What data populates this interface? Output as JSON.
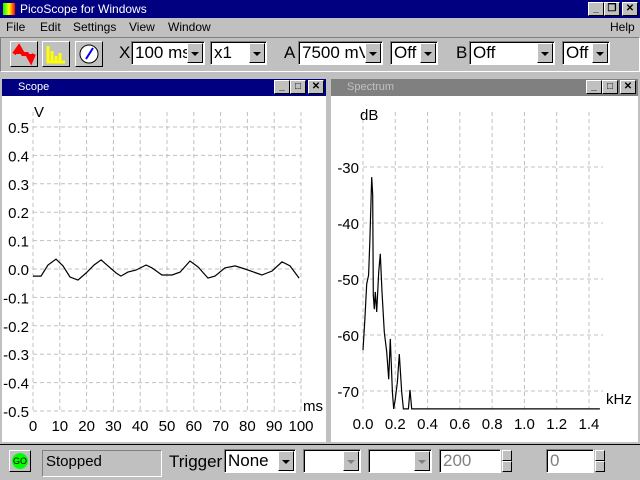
{
  "window": {
    "title": "PicoScope for Windows"
  },
  "menu": {
    "items": [
      "File",
      "Edit",
      "Settings",
      "View",
      "Window"
    ],
    "help": "Help"
  },
  "toolbar": {
    "icons": [
      "scope-view-icon",
      "spectrum-view-icon",
      "meter-view-icon"
    ],
    "x_label": "X",
    "timebase": "100 ms",
    "multiplier": "x1",
    "a_label": "A",
    "a_range": "7500 mV",
    "a_coupling": "Off",
    "b_label": "B",
    "b_range": "Off",
    "b_coupling": "Off"
  },
  "scope": {
    "title": "Scope"
  },
  "spectrum": {
    "title": "Spectrum"
  },
  "status": {
    "go_label": "GO",
    "state": "Stopped",
    "trigger_label": "Trigger",
    "trigger_mode": "None",
    "trigger_channel": "",
    "trigger_edge": "",
    "threshold": "200",
    "delay": "0"
  },
  "chart_data": [
    {
      "type": "line",
      "ylabel": "V",
      "xlabel": "ms",
      "xlim": [
        0,
        100
      ],
      "ylim": [
        -0.5,
        0.5
      ],
      "grid": true,
      "xticks": [
        "0",
        "10",
        "20",
        "30",
        "40",
        "50",
        "60",
        "70",
        "80",
        "90",
        "100"
      ],
      "yticks": [
        "0.5",
        "0.4",
        "0.3",
        "0.2",
        "0.1",
        "0.0",
        "-0.1",
        "-0.2",
        "-0.3",
        "-0.4",
        "-0.5"
      ],
      "x": [
        0,
        3,
        5.6,
        8.6,
        11.2,
        13.8,
        16.8,
        19.8,
        22.8,
        25.4,
        28,
        31,
        32.8,
        35.4,
        38.4,
        42.2,
        44.4,
        48.1,
        51.9,
        54.9,
        58.6,
        61.6,
        65.3,
        67.9,
        71.6,
        75.4,
        79.1,
        85.4,
        89.2,
        92.9,
        95.9,
        99.3
      ],
      "y": [
        -0.025,
        -0.025,
        0.014,
        0.035,
        0.011,
        -0.028,
        -0.039,
        -0.014,
        0.014,
        0.032,
        0.011,
        -0.014,
        -0.025,
        -0.011,
        -0.004,
        0.014,
        0.004,
        -0.021,
        -0.021,
        -0.011,
        0.028,
        0.007,
        -0.032,
        -0.025,
        0.004,
        0.011,
        0,
        -0.021,
        -0.007,
        0.025,
        0.011,
        -0.032
      ]
    },
    {
      "type": "line",
      "ylabel": "dB",
      "xlabel": "kHz",
      "xlim": [
        0,
        1.47
      ],
      "ylim": [
        -73.2,
        -30
      ],
      "grid": true,
      "xticks": [
        "0.0",
        "0.2",
        "0.4",
        "0.6",
        "0.8",
        "1.0",
        "1.2",
        "1.4"
      ],
      "yticks": [
        "-30",
        "-40",
        "-50",
        "-60",
        "-70"
      ],
      "x": [
        0,
        0.012,
        0.023,
        0.035,
        0.043,
        0.054,
        0.06,
        0.064,
        0.07,
        0.076,
        0.085,
        0.097,
        0.107,
        0.118,
        0.132,
        0.147,
        0.159,
        0.169,
        0.182,
        0.19,
        0.2,
        0.213,
        0.225,
        0.24,
        0.25,
        0.281,
        0.291,
        0.302,
        1.468
      ],
      "y": [
        -62.7,
        -57.1,
        -50.9,
        -49.3,
        -42.9,
        -31.8,
        -35,
        -52.9,
        -55.4,
        -52.3,
        -55.9,
        -48.8,
        -45.5,
        -52.3,
        -59.5,
        -63,
        -67.9,
        -60.7,
        -70.2,
        -73.2,
        -71.4,
        -68.4,
        -63.4,
        -70.2,
        -73.2,
        -73.2,
        -69.8,
        -73.2,
        -73.2
      ]
    }
  ]
}
